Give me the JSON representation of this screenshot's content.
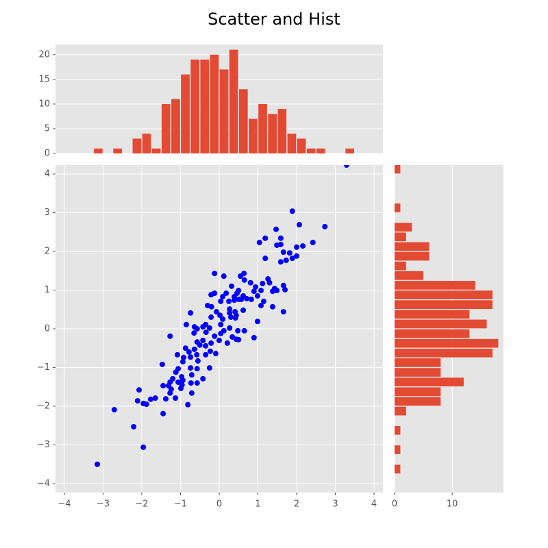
{
  "title": "Scatter and Hist",
  "chart_data": [
    {
      "type": "histogram",
      "orientation": "vertical",
      "color": "#e24a33",
      "grid": true,
      "bins": [
        -4.5,
        -4.25,
        -4,
        -3.75,
        -3.5,
        -3.25,
        -3,
        -2.75,
        -2.5,
        -2.25,
        -2,
        -1.75,
        -1.5,
        -1.25,
        -1,
        -0.75,
        -0.5,
        -0.25,
        0,
        0.25,
        0.5,
        0.75,
        1,
        1.25,
        1.5,
        1.75,
        2,
        2.25,
        2.5,
        2.75,
        3,
        3.25,
        3.5,
        3.75,
        4,
        4.25,
        4.5
      ],
      "counts": [
        0,
        0,
        0,
        0,
        0,
        1,
        0,
        1,
        0,
        3,
        4,
        1,
        10,
        11,
        16,
        19,
        19,
        20,
        17,
        21,
        13,
        7,
        10,
        8,
        9,
        4,
        3,
        1,
        1,
        0,
        0,
        1,
        0,
        0,
        0,
        0
      ],
      "xlim": [
        -4.23,
        4.23
      ],
      "ylim": [
        0,
        22.05
      ],
      "yticks": [
        0,
        5,
        10,
        15,
        20
      ]
    },
    {
      "type": "scatter",
      "color": "#0000ff",
      "grid": true,
      "x": [
        3.29,
        1.89,
        2.07,
        2.73,
        1.47,
        1.19,
        1.04,
        1.59,
        1.49,
        1.59,
        2.16,
        2.0,
        2.42,
        1.66,
        1.82,
        2.0,
        1.89,
        1.19,
        1.59,
        1.73,
        0.64,
        0.55,
        0.12,
        -0.12,
        0.65,
        1.26,
        0.81,
        1.12,
        1.3,
        1.66,
        0.94,
        0.32,
        1.43,
        1.7,
        1.08,
        1.38,
        1.49,
        0.9,
        0.5,
        0.46,
        -0.12,
        -0.21,
        0.18,
        0.09,
        0.39,
        0.62,
        0.99,
        0.71,
        0.57,
        0.83,
        1.15,
        0.39,
        0.04,
        0.25,
        0.51,
        1.08,
        1.38,
        -0.3,
        -0.2,
        0.27,
        0.62,
        0.41,
        -0.74,
        -0.07,
        0.27,
        0.44,
        0.02,
        0.3,
        0.42,
        -0.21,
        0.09,
        1.66,
        0.99,
        -0.85,
        -0.42,
        -0.64,
        -0.57,
        -0.35,
        0.04,
        -0.25,
        0.12,
        0.48,
        0.65,
        0.27,
        -0.65,
        -0.34,
        0.04,
        -0.12,
        0.34,
        0.44,
        0.5,
        0.9,
        -0.42,
        -0.57,
        0.0,
        0.21,
        -0.21,
        -0.35,
        -0.5,
        -0.64,
        -0.87,
        -0.78,
        -0.23,
        -0.09,
        -0.35,
        -0.58,
        -1.08,
        -0.74,
        -0.92,
        -0.55,
        -0.94,
        -1.47,
        -0.74,
        -0.25,
        -1.06,
        -0.57,
        -1.12,
        -0.71,
        -1.27,
        -0.97,
        -0.42,
        -1.2,
        -0.94,
        -1.06,
        -1.27,
        -0.73,
        -0.57,
        -0.96,
        -0.99,
        -1.31,
        -1.24,
        -1.45,
        -1.27,
        -0.71,
        -2.07,
        -1.38,
        -1.13,
        -1.65,
        -1.77,
        -2.11,
        -1.96,
        -1.88,
        -0.81,
        -2.71,
        -1.45,
        -2.21,
        -1.96,
        -3.15
      ],
      "y": [
        4.23,
        3.04,
        2.69,
        2.64,
        2.57,
        2.34,
        2.23,
        2.34,
        2.16,
        2.18,
        2.14,
        2.11,
        2.23,
        1.98,
        1.96,
        1.88,
        1.82,
        1.82,
        1.73,
        1.77,
        1.43,
        1.36,
        1.36,
        1.43,
        1.26,
        1.29,
        1.19,
        1.17,
        1.19,
        1.12,
        1.08,
        1.1,
        1.04,
        1.01,
        0.99,
        0.97,
        0.99,
        0.97,
        0.99,
        0.92,
        0.92,
        0.88,
        0.92,
        0.83,
        0.83,
        0.85,
        0.85,
        0.78,
        0.76,
        0.76,
        0.71,
        0.74,
        0.71,
        0.71,
        0.76,
        0.6,
        0.57,
        0.6,
        0.57,
        0.51,
        0.48,
        0.44,
        0.41,
        0.44,
        0.41,
        0.35,
        0.35,
        0.3,
        0.28,
        0.3,
        0.25,
        0.44,
        0.19,
        0.11,
        0.05,
        0.05,
        0.0,
        0.11,
        0.11,
        0.02,
        -0.05,
        -0.05,
        -0.05,
        0.02,
        -0.11,
        -0.09,
        -0.12,
        -0.19,
        -0.21,
        -0.27,
        -0.28,
        -0.23,
        -0.3,
        -0.34,
        -0.3,
        -0.37,
        -0.37,
        -0.44,
        -0.42,
        -0.53,
        -0.5,
        -0.6,
        -0.58,
        -0.64,
        -0.67,
        -0.67,
        -0.67,
        -0.73,
        -0.74,
        -0.83,
        -0.85,
        -0.92,
        -1.01,
        -1.01,
        -1.03,
        -1.03,
        -1.12,
        -1.19,
        -0.19,
        -1.24,
        -1.29,
        -1.29,
        -1.33,
        -1.38,
        -1.38,
        -1.4,
        -1.4,
        -1.45,
        -1.54,
        -1.47,
        -1.56,
        -1.47,
        -1.66,
        -1.66,
        -1.58,
        -1.81,
        -1.79,
        -1.79,
        -1.82,
        -1.86,
        -1.93,
        -1.95,
        -1.96,
        -2.09,
        -2.19,
        -2.53,
        -3.06,
        -3.5
      ],
      "xlim": [
        -4.23,
        4.23
      ],
      "ylim": [
        -4.23,
        4.23
      ],
      "xticks": [
        {
          "value": -4,
          "label": "−4"
        },
        {
          "value": -3,
          "label": "−3"
        },
        {
          "value": -2,
          "label": "−2"
        },
        {
          "value": -1,
          "label": "−1"
        },
        0,
        1,
        2,
        3,
        4
      ],
      "yticks": [
        {
          "value": -4,
          "label": "−4"
        },
        {
          "value": -3,
          "label": "−3"
        },
        {
          "value": -2,
          "label": "−2"
        },
        {
          "value": -1,
          "label": "−1"
        },
        0,
        1,
        2,
        3,
        4
      ]
    },
    {
      "type": "histogram",
      "orientation": "horizontal",
      "color": "#e24a33",
      "grid": true,
      "bins": [
        -4.5,
        -4.25,
        -4,
        -3.75,
        -3.5,
        -3.25,
        -3,
        -2.75,
        -2.5,
        -2.25,
        -2,
        -1.75,
        -1.5,
        -1.25,
        -1,
        -0.75,
        -0.5,
        -0.25,
        0,
        0.25,
        0.5,
        0.75,
        1,
        1.25,
        1.5,
        1.75,
        2,
        2.25,
        2.5,
        2.75,
        3,
        3.25,
        3.5,
        3.75,
        4,
        4.25,
        4.5
      ],
      "counts": [
        0,
        0,
        0,
        1,
        0,
        1,
        0,
        1,
        0,
        2,
        8,
        8,
        12,
        8,
        8,
        17,
        18,
        13,
        16,
        13,
        17,
        17,
        14,
        5,
        2,
        6,
        6,
        2,
        3,
        0,
        1,
        0,
        0,
        0,
        1,
        0
      ],
      "xlim": [
        0,
        18.9
      ],
      "ylim": [
        -4.23,
        4.23
      ],
      "xticks": [
        0,
        10
      ]
    }
  ]
}
